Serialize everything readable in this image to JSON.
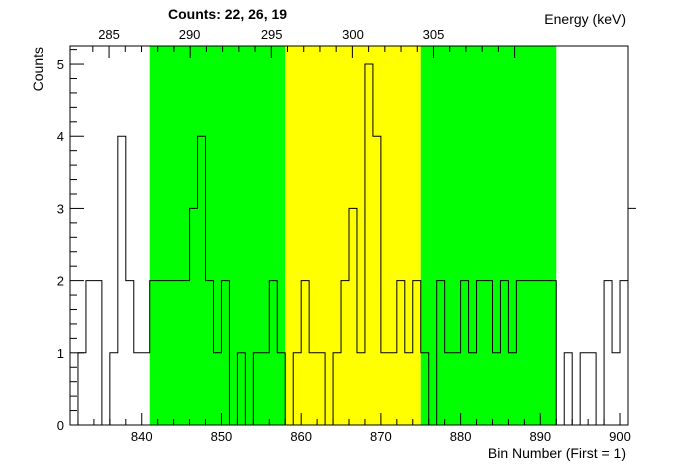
{
  "chart_data": {
    "type": "histogram",
    "title": "Counts:   22,   26,   19",
    "xlabel": "Bin Number (First = 1)",
    "ylabel": "Counts",
    "x2label": "Energy (keV)",
    "xlim": [
      831,
      901
    ],
    "ylim": [
      0,
      5.25
    ],
    "x_ticks": [
      840,
      850,
      860,
      870,
      880,
      890,
      900
    ],
    "y_ticks": [
      0,
      1,
      2,
      3,
      4,
      5
    ],
    "x2_ticks": [
      {
        "label": "285",
        "bin": 835.9
      },
      {
        "label": "290",
        "bin": 846.0
      },
      {
        "label": "295",
        "bin": 856.3
      },
      {
        "label": "300",
        "bin": 866.5
      },
      {
        "label": "305",
        "bin": 876.6
      }
    ],
    "regions": [
      {
        "from": 841,
        "to": 858,
        "color": "#00ff00"
      },
      {
        "from": 858,
        "to": 875,
        "color": "#ffff00"
      },
      {
        "from": 875,
        "to": 892,
        "color": "#00ff00"
      }
    ],
    "bin_start": 831,
    "bin_width": 1,
    "counts": [
      0,
      1,
      2,
      2,
      0,
      1,
      4,
      2,
      1,
      1,
      2,
      2,
      2,
      2,
      2,
      3,
      4,
      2,
      1,
      2,
      0,
      1,
      0,
      1,
      1,
      2,
      1,
      0,
      1,
      2,
      1,
      1,
      0,
      1,
      2,
      3,
      1,
      5,
      4,
      1,
      1,
      2,
      1,
      2,
      1,
      0,
      2,
      1,
      1,
      2,
      1,
      2,
      2,
      1,
      2,
      1,
      2,
      2,
      2,
      2,
      2,
      0,
      1,
      0,
      1,
      1,
      0,
      2,
      1,
      2,
      3
    ]
  }
}
